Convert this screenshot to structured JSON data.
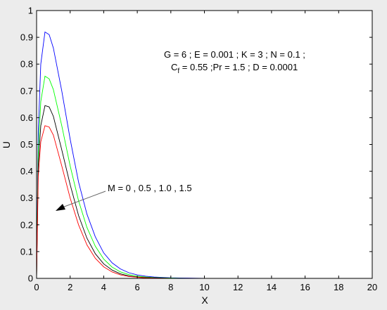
{
  "chart_data": {
    "type": "line",
    "title": "",
    "xlabel": "X",
    "ylabel": "U",
    "xlim": [
      0,
      20
    ],
    "ylim": [
      0,
      1
    ],
    "xticks": [
      "0",
      "2",
      "4",
      "6",
      "8",
      "10",
      "12",
      "14",
      "16",
      "18",
      "20"
    ],
    "yticks": [
      "0",
      "0.1",
      "0.2",
      "0.3",
      "0.4",
      "0.5",
      "0.6",
      "0.7",
      "0.8",
      "0.9",
      "1"
    ],
    "grid": false,
    "x": [
      0,
      0.1,
      0.25,
      0.5,
      0.75,
      1.0,
      1.5,
      2.0,
      2.5,
      3.0,
      3.5,
      4.0,
      4.5,
      5.0,
      5.5,
      6.0,
      6.5,
      7.0,
      8.0,
      9.0,
      10.0,
      12.0,
      14.0,
      16.0,
      18.0,
      20.0
    ],
    "series": [
      {
        "color": "#0000ff",
        "values": [
          0,
          0.55,
          0.8,
          0.92,
          0.91,
          0.86,
          0.7,
          0.52,
          0.36,
          0.24,
          0.155,
          0.095,
          0.058,
          0.035,
          0.021,
          0.013,
          0.008,
          0.005,
          0.002,
          0.001,
          0,
          0,
          0,
          0,
          0,
          0
        ]
      },
      {
        "color": "#00ff00",
        "values": [
          0,
          0.48,
          0.66,
          0.755,
          0.745,
          0.705,
          0.57,
          0.42,
          0.29,
          0.19,
          0.12,
          0.072,
          0.042,
          0.024,
          0.014,
          0.008,
          0.005,
          0.003,
          0.001,
          0,
          0,
          0,
          0,
          0,
          0,
          0
        ]
      },
      {
        "color": "#000000",
        "values": [
          0,
          0.42,
          0.57,
          0.645,
          0.64,
          0.605,
          0.48,
          0.35,
          0.235,
          0.15,
          0.092,
          0.054,
          0.031,
          0.017,
          0.009,
          0.005,
          0.003,
          0.002,
          0,
          0,
          0,
          0,
          0,
          0,
          0,
          0
        ]
      },
      {
        "color": "#ff0000",
        "values": [
          0,
          0.38,
          0.51,
          0.57,
          0.565,
          0.535,
          0.42,
          0.3,
          0.2,
          0.125,
          0.075,
          0.043,
          0.024,
          0.013,
          0.007,
          0.004,
          0.002,
          0.001,
          0,
          0,
          0,
          0,
          0,
          0,
          0,
          0
        ]
      }
    ],
    "annotations": {
      "params_line1": "G = 6 ;  E = 0.001 ; K = 3 ; N = 0.1 ;",
      "params_line2_prefix": "C",
      "params_line2_sub": "f",
      "params_line2_rest": " = 0.55 ;Pr = 1.5 ; D = 0.0001",
      "arrow_label": "M = 0 , 0.5 , 1.0 , 1.5"
    }
  }
}
